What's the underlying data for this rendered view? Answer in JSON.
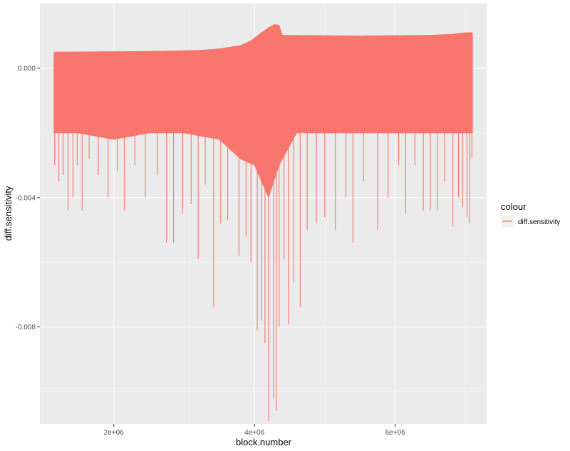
{
  "chart_data": {
    "type": "line",
    "xlabel": "block.number",
    "ylabel": "diff.sensitivity",
    "xlim": [
      950000,
      7300000
    ],
    "ylim": [
      -0.011,
      0.002
    ],
    "x_ticks": [
      {
        "value": 2000000,
        "label": "2e+06"
      },
      {
        "value": 4000000,
        "label": "4e+06"
      },
      {
        "value": 6000000,
        "label": "6e+06"
      }
    ],
    "y_ticks": [
      {
        "value": 0.0,
        "label": "0.000"
      },
      {
        "value": -0.004,
        "label": "-0.004"
      },
      {
        "value": -0.008,
        "label": "-0.008"
      }
    ],
    "grid": true,
    "legend_position": "right",
    "legend": {
      "title": "colour",
      "entries": [
        "diff.sensitivity"
      ]
    },
    "colors": {
      "series": "#F8766D",
      "panel": "#EBEBEB",
      "grid_major": "#FFFFFF",
      "grid_minor": "#F5F5F5",
      "legend_key": "#F2F2F2"
    },
    "series": [
      {
        "name": "diff.sensitivity",
        "x_range": [
          1150000,
          7100000
        ],
        "band_top": [
          [
            1150000,
            0.0005
          ],
          [
            2500000,
            0.00052
          ],
          [
            3200000,
            0.00055
          ],
          [
            3500000,
            0.0006
          ],
          [
            3800000,
            0.0007
          ],
          [
            3950000,
            0.00085
          ],
          [
            4100000,
            0.0011
          ],
          [
            4200000,
            0.00125
          ],
          [
            4280000,
            0.00135
          ],
          [
            4350000,
            0.00133
          ],
          [
            4400000,
            0.00102
          ],
          [
            5500000,
            0.001
          ],
          [
            6500000,
            0.00102
          ],
          [
            6800000,
            0.00105
          ],
          [
            7000000,
            0.0011
          ],
          [
            7100000,
            0.0011
          ]
        ],
        "band_bottom": [
          [
            1150000,
            -0.002
          ],
          [
            1500000,
            -0.002
          ],
          [
            2000000,
            -0.0022
          ],
          [
            2500000,
            -0.002
          ],
          [
            3000000,
            -0.002
          ],
          [
            3500000,
            -0.0022
          ],
          [
            3800000,
            -0.0028
          ],
          [
            4000000,
            -0.003
          ],
          [
            4200000,
            -0.004
          ],
          [
            4350000,
            -0.003
          ],
          [
            4600000,
            -0.002
          ],
          [
            5000000,
            -0.002
          ],
          [
            5500000,
            -0.002
          ],
          [
            6000000,
            -0.002
          ],
          [
            6500000,
            -0.002
          ],
          [
            7100000,
            -0.002
          ]
        ],
        "spikes": [
          [
            1160000,
            -0.003
          ],
          [
            1220000,
            -0.0035
          ],
          [
            1280000,
            -0.0033
          ],
          [
            1350000,
            -0.0044
          ],
          [
            1420000,
            -0.004
          ],
          [
            1480000,
            -0.003
          ],
          [
            1550000,
            -0.0044
          ],
          [
            1650000,
            -0.0028
          ],
          [
            1780000,
            -0.0033
          ],
          [
            1920000,
            -0.004
          ],
          [
            2050000,
            -0.0032
          ],
          [
            2150000,
            -0.0044
          ],
          [
            2300000,
            -0.003
          ],
          [
            2450000,
            -0.004
          ],
          [
            2620000,
            -0.0033
          ],
          [
            2750000,
            -0.0054
          ],
          [
            2850000,
            -0.0054
          ],
          [
            2980000,
            -0.0045
          ],
          [
            3100000,
            -0.0042
          ],
          [
            3200000,
            -0.0059
          ],
          [
            3300000,
            -0.0036
          ],
          [
            3420000,
            -0.0074
          ],
          [
            3520000,
            -0.0048
          ],
          [
            3620000,
            -0.0047
          ],
          [
            3780000,
            -0.0058
          ],
          [
            3880000,
            -0.0052
          ],
          [
            3950000,
            -0.006
          ],
          [
            4040000,
            -0.0081
          ],
          [
            4100000,
            -0.0078
          ],
          [
            4150000,
            -0.0085
          ],
          [
            4200000,
            -0.0109
          ],
          [
            4270000,
            -0.0102
          ],
          [
            4310000,
            -0.0106
          ],
          [
            4350000,
            -0.008
          ],
          [
            4420000,
            -0.0059
          ],
          [
            4480000,
            -0.0079
          ],
          [
            4560000,
            -0.0066
          ],
          [
            4650000,
            -0.0074
          ],
          [
            4750000,
            -0.005
          ],
          [
            4880000,
            -0.0048
          ],
          [
            5000000,
            -0.0046
          ],
          [
            5150000,
            -0.005
          ],
          [
            5300000,
            -0.004
          ],
          [
            5400000,
            -0.0054
          ],
          [
            5550000,
            -0.0035
          ],
          [
            5750000,
            -0.005
          ],
          [
            5900000,
            -0.004
          ],
          [
            6050000,
            -0.003
          ],
          [
            6150000,
            -0.0045
          ],
          [
            6280000,
            -0.003
          ],
          [
            6400000,
            -0.0044
          ],
          [
            6500000,
            -0.0044
          ],
          [
            6600000,
            -0.0044
          ],
          [
            6700000,
            -0.0035
          ],
          [
            6820000,
            -0.0049
          ],
          [
            6900000,
            -0.004
          ],
          [
            6960000,
            -0.0043
          ],
          [
            7020000,
            -0.0046
          ],
          [
            7060000,
            -0.0048
          ],
          [
            7090000,
            -0.0028
          ]
        ]
      }
    ]
  }
}
